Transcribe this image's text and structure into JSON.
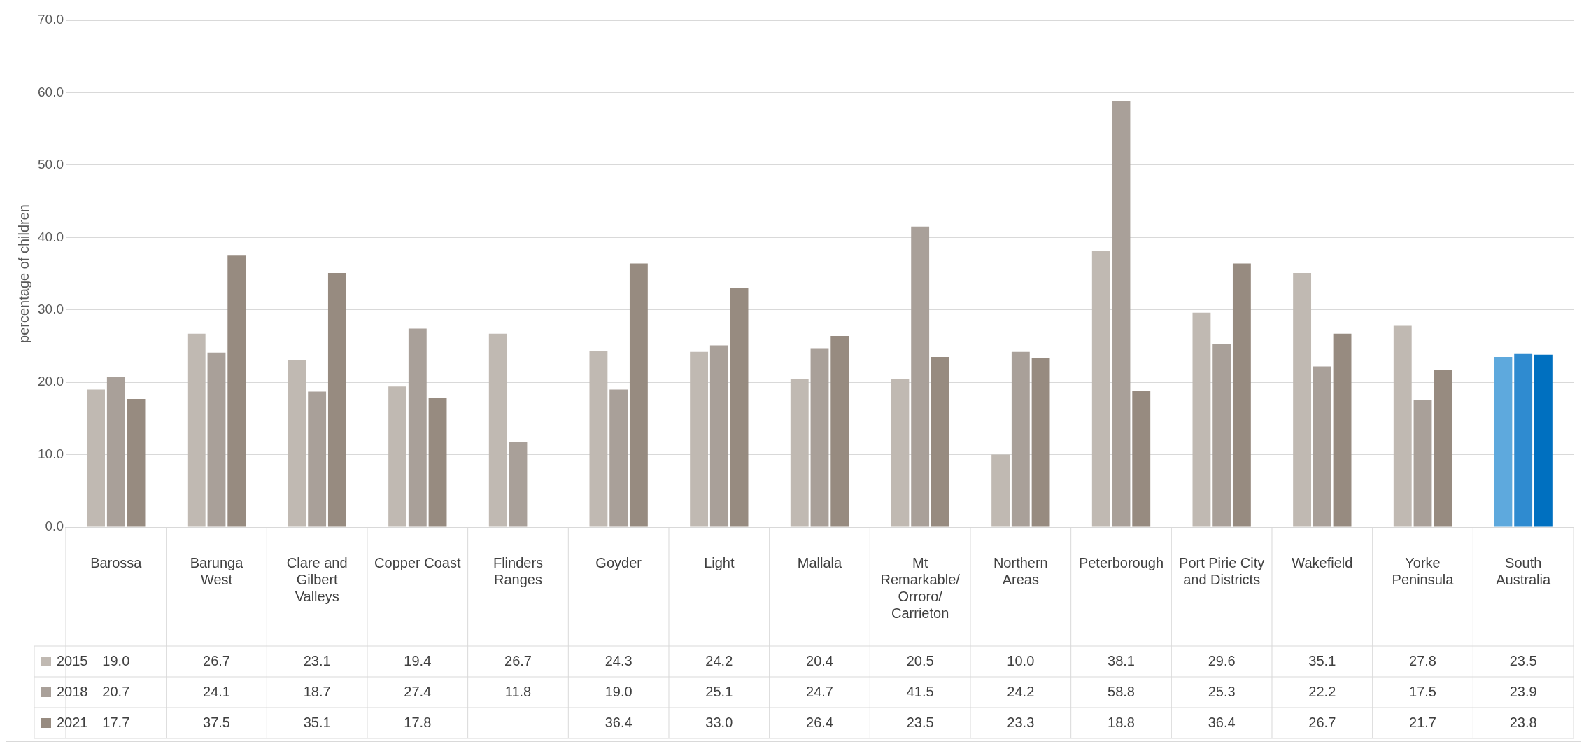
{
  "chart_data": {
    "type": "bar",
    "ylabel": "percentage of children",
    "categories": [
      "Barossa",
      "Barunga West",
      "Clare and Gilbert Valleys",
      "Copper Coast",
      "Flinders Ranges",
      "Goyder",
      "Light",
      "Mallala",
      "Mt Remarkable/ Orroro/ Carrieton",
      "Northern Areas",
      "Peterborough",
      "Port Pirie City and Districts",
      "Wakefield",
      "Yorke Peninsula",
      "South Australia"
    ],
    "series": [
      {
        "name": "2015",
        "color": "#c0b9b2",
        "colors": [
          "#c0b9b2",
          "#c0b9b2",
          "#c0b9b2",
          "#c0b9b2",
          "#c0b9b2",
          "#c0b9b2",
          "#c0b9b2",
          "#c0b9b2",
          "#c0b9b2",
          "#c0b9b2",
          "#c0b9b2",
          "#c0b9b2",
          "#c0b9b2",
          "#c0b9b2",
          "#5ea9dd"
        ],
        "values": [
          19.0,
          26.7,
          23.1,
          19.4,
          26.7,
          24.3,
          24.2,
          20.4,
          20.5,
          10.0,
          38.1,
          29.6,
          35.1,
          27.8,
          23.5
        ],
        "value_labels": [
          "19.0",
          "26.7",
          "23.1",
          "19.4",
          "26.7",
          "24.3",
          "24.2",
          "20.4",
          "20.5",
          "10.0",
          "38.1",
          "29.6",
          "35.1",
          "27.8",
          "23.5"
        ]
      },
      {
        "name": "2018",
        "color": "#a9a099",
        "colors": [
          "#a9a099",
          "#a9a099",
          "#a9a099",
          "#a9a099",
          "#a9a099",
          "#a9a099",
          "#a9a099",
          "#a9a099",
          "#a9a099",
          "#a9a099",
          "#a9a099",
          "#a9a099",
          "#a9a099",
          "#a9a099",
          "#2f8bd0"
        ],
        "values": [
          20.7,
          24.1,
          18.7,
          27.4,
          11.8,
          19.0,
          25.1,
          24.7,
          41.5,
          24.2,
          58.8,
          25.3,
          22.2,
          17.5,
          23.9
        ],
        "value_labels": [
          "20.7",
          "24.1",
          "18.7",
          "27.4",
          "11.8",
          "19.0",
          "25.1",
          "24.7",
          "41.5",
          "24.2",
          "58.8",
          "25.3",
          "22.2",
          "17.5",
          "23.9"
        ]
      },
      {
        "name": "2021",
        "color": "#978b80",
        "colors": [
          "#978b80",
          "#978b80",
          "#978b80",
          "#978b80",
          "#978b80",
          "#978b80",
          "#978b80",
          "#978b80",
          "#978b80",
          "#978b80",
          "#978b80",
          "#978b80",
          "#978b80",
          "#978b80",
          "#0070c0"
        ],
        "values": [
          17.7,
          37.5,
          35.1,
          17.8,
          null,
          36.4,
          33.0,
          26.4,
          23.5,
          23.3,
          18.8,
          36.4,
          26.7,
          21.7,
          23.8
        ],
        "value_labels": [
          "17.7",
          "37.5",
          "35.1",
          "17.8",
          null,
          "36.4",
          "33.0",
          "26.4",
          "23.5",
          "23.3",
          "18.8",
          "36.4",
          "26.7",
          "21.7",
          "23.8"
        ]
      }
    ],
    "ylim": [
      0,
      70
    ],
    "yticks": [
      {
        "value": 0,
        "label": "0.0"
      },
      {
        "value": 10,
        "label": "10.0"
      },
      {
        "value": 20,
        "label": "20.0"
      },
      {
        "value": 30,
        "label": "30.0"
      },
      {
        "value": 40,
        "label": "40.0"
      },
      {
        "value": 50,
        "label": "50.0"
      },
      {
        "value": 60,
        "label": "60.0"
      },
      {
        "value": 70,
        "label": "70.0"
      }
    ],
    "grid": "y",
    "legend": "bottom left"
  }
}
